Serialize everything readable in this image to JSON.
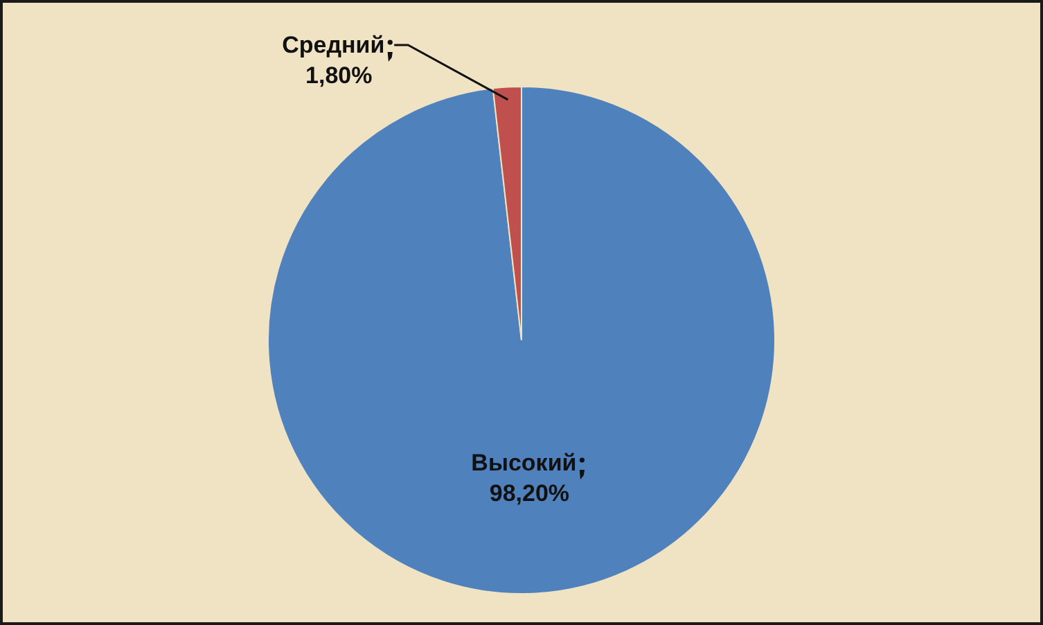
{
  "chart_data": {
    "type": "pie",
    "categories": [
      "Высокий",
      "Средний"
    ],
    "values": [
      98.2,
      1.8
    ],
    "colors": [
      "#4f81bd",
      "#c0504d"
    ],
    "value_labels": [
      "98,20%",
      "1,80%"
    ],
    "legend": false
  }
}
